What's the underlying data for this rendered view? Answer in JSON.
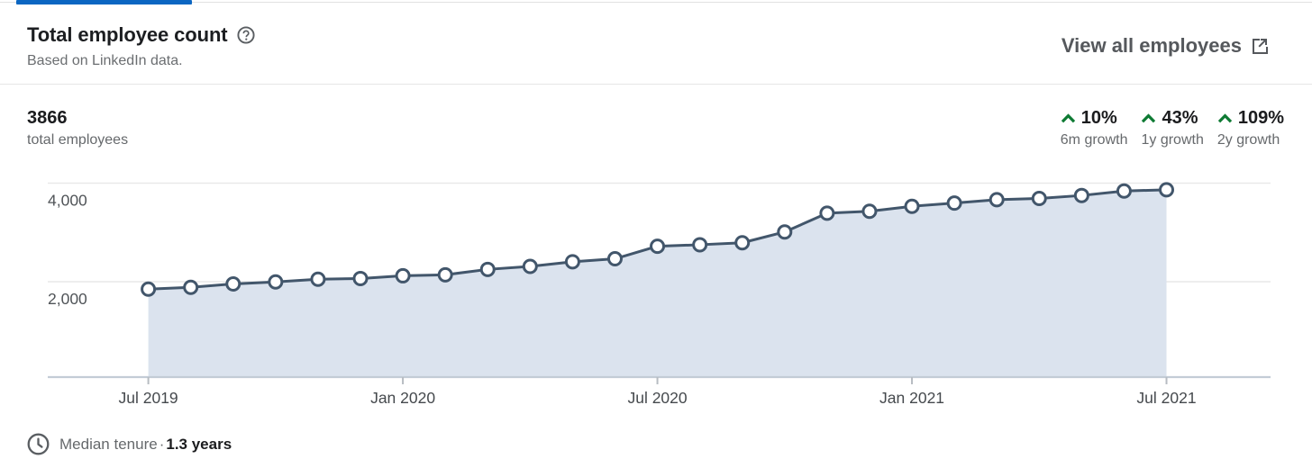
{
  "tab": {
    "indicator_color": "#0b66c2"
  },
  "header": {
    "title": "Total employee count",
    "subtitle": "Based on LinkedIn data.",
    "view_all_label": "View all employees"
  },
  "stats": {
    "total": {
      "value": "3866",
      "label": "total employees"
    },
    "growth_color": "#0e7a33",
    "growth": [
      {
        "value": "10%",
        "label": "6m growth"
      },
      {
        "value": "43%",
        "label": "1y growth"
      },
      {
        "value": "109%",
        "label": "2y growth"
      }
    ]
  },
  "chart_data": {
    "type": "area",
    "title": "Total employee count",
    "x": [
      "Jul 2019",
      "Aug 2019",
      "Sep 2019",
      "Oct 2019",
      "Nov 2019",
      "Dec 2019",
      "Jan 2020",
      "Feb 2020",
      "Mar 2020",
      "Apr 2020",
      "May 2020",
      "Jun 2020",
      "Jul 2020",
      "Aug 2020",
      "Sep 2020",
      "Oct 2020",
      "Nov 2020",
      "Dec 2020",
      "Jan 2021",
      "Feb 2021",
      "Mar 2021",
      "Apr 2021",
      "May 2021",
      "Jun 2021",
      "Jul 2021"
    ],
    "values": [
      1850,
      1885,
      1955,
      1995,
      2050,
      2065,
      2120,
      2140,
      2250,
      2310,
      2405,
      2465,
      2720,
      2750,
      2790,
      3010,
      3390,
      3430,
      3530,
      3595,
      3665,
      3690,
      3750,
      3840,
      3866
    ],
    "ylim": [
      0,
      4400
    ],
    "ytick_values": [
      2000,
      4000
    ],
    "ytick_labels": [
      "2,000",
      "4,000"
    ],
    "xtick_indices": [
      0,
      6,
      12,
      18,
      24
    ],
    "xtick_labels": [
      "Jul 2019",
      "Jan 2020",
      "Jul 2020",
      "Jan 2021",
      "Jul 2021"
    ],
    "grid": true,
    "legend": "none",
    "line_color": "#42566b",
    "fill_color": "#dbe3ee",
    "point_fill": "#ffffff",
    "grid_color": "#e9e9e9",
    "axis_color": "#c3ccd6",
    "tick_color": "#b7bcc2",
    "tick_label_color": "#45494d"
  },
  "footer": {
    "label": "Median tenure",
    "separator": "·",
    "value": "1.3 years"
  }
}
